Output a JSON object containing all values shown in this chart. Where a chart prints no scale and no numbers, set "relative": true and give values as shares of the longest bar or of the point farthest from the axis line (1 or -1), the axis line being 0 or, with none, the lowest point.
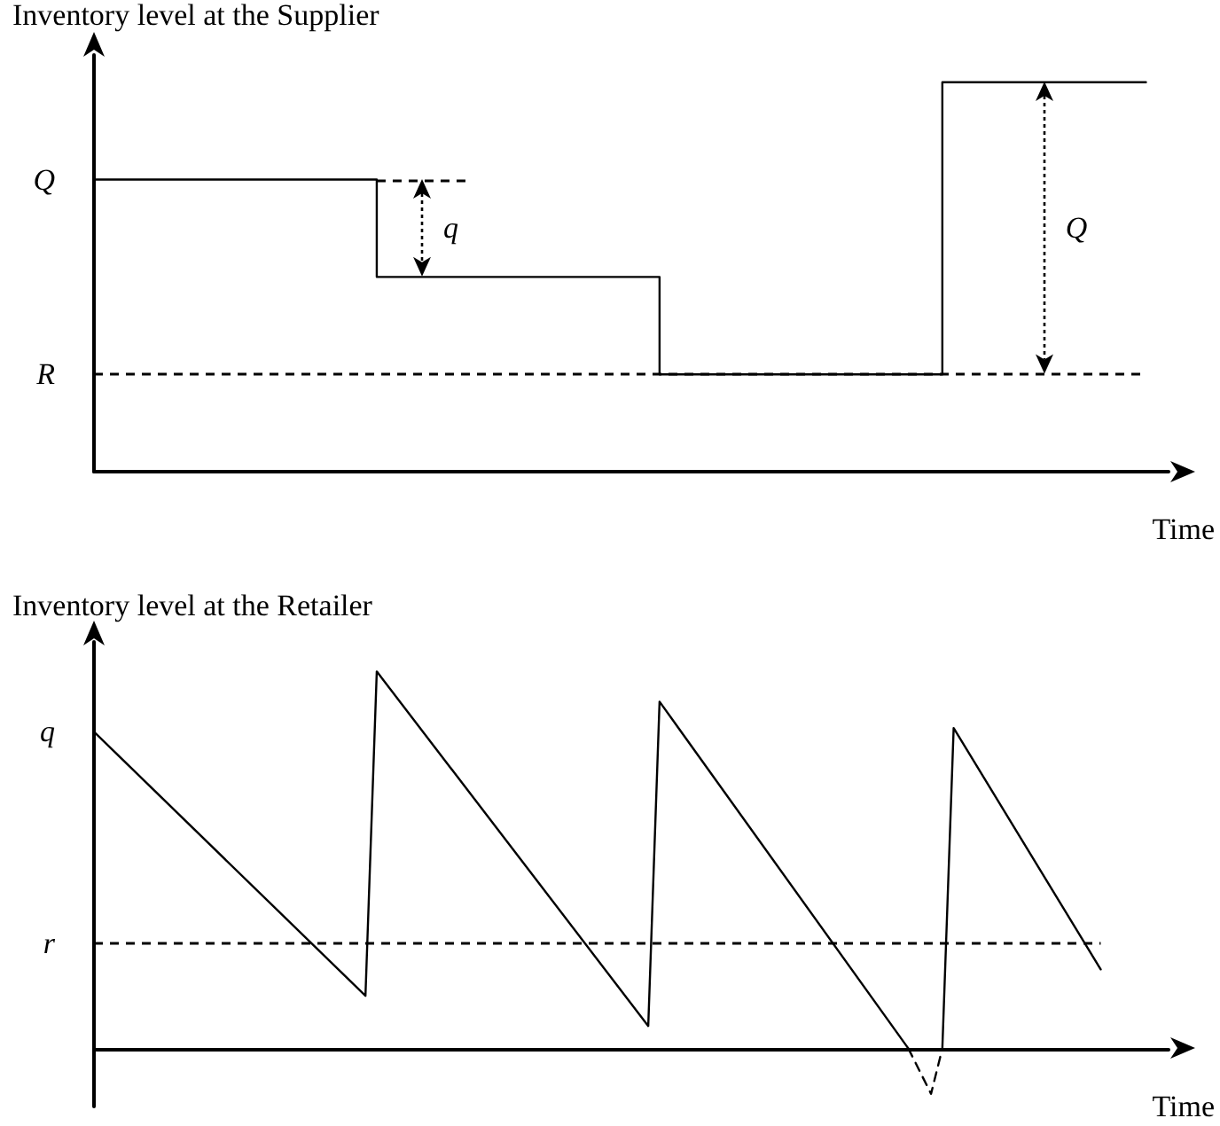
{
  "chart_data": [
    {
      "type": "step",
      "ylabel": "Inventory level at the Supplier",
      "xlabel": "Time",
      "relative": true,
      "line_style": "solid",
      "categories": [
        null,
        null,
        null,
        null,
        null,
        null,
        null,
        null,
        null,
        null,
        null,
        null,
        null,
        null,
        null,
        null,
        null,
        null,
        null,
        null,
        null,
        null,
        null,
        null,
        null,
        null,
        null,
        null,
        null,
        null,
        null,
        null,
        null,
        null,
        null,
        null,
        null,
        null,
        null,
        null,
        null,
        null,
        null,
        null,
        null,
        null,
        null,
        null,
        null,
        null,
        null,
        null,
        null,
        null,
        null,
        null,
        null,
        null,
        null,
        null,
        null,
        null,
        null,
        null,
        null,
        null,
        null,
        null,
        null,
        null,
        null,
        null,
        null,
        null,
        null,
        null,
        null,
        null,
        null,
        null,
        null,
        null,
        null,
        null,
        null,
        null,
        null,
        null,
        null,
        null,
        null,
        null,
        null,
        null,
        null,
        null
      ],
      "series": [
        {
          "color": "#000000",
          "values": [
            0.75,
            null,
            null,
            null,
            null,
            null,
            null,
            null,
            null,
            null,
            null,
            null,
            null,
            null,
            null,
            null,
            null,
            null,
            null,
            null,
            null,
            null,
            null,
            null,
            null,
            0.5,
            null,
            null,
            null,
            null,
            null,
            null,
            null,
            null,
            null,
            null,
            null,
            null,
            null,
            null,
            null,
            null,
            null,
            null,
            null,
            null,
            null,
            null,
            null,
            null,
            0.25,
            null,
            null,
            null,
            null,
            null,
            null,
            null,
            null,
            null,
            null,
            null,
            null,
            null,
            null,
            null,
            null,
            null,
            null,
            null,
            null,
            null,
            null,
            null,
            null,
            1,
            null,
            null,
            null,
            null,
            null,
            null,
            null,
            null,
            null,
            null,
            null,
            null,
            null,
            null,
            null,
            null,
            null,
            1,
            null,
            null
          ]
        }
      ],
      "ref_lines": [
        {
          "axis": "y",
          "value": 0.25,
          "label": "R",
          "line_style": "dashed",
          "color": "#000000"
        }
      ],
      "annotations": [
        "Q",
        "q",
        "Q"
      ]
    },
    {
      "type": "line",
      "ylabel": "Inventory level at the Retailer",
      "xlabel": "Time",
      "relative": true,
      "line_style": "solid",
      "categories": [
        null,
        null,
        null,
        null,
        null,
        null,
        null,
        null,
        null,
        null,
        null,
        null,
        null,
        null,
        null,
        null,
        null,
        null,
        null,
        null,
        null,
        null,
        null,
        null,
        null,
        null,
        null,
        null,
        null,
        null,
        null,
        null,
        null,
        null,
        null,
        null,
        null,
        null,
        null,
        null,
        null,
        null,
        null,
        null,
        null,
        null,
        null,
        null,
        null,
        null,
        null,
        null,
        null,
        null,
        null,
        null,
        null,
        null,
        null,
        null,
        null,
        null,
        null,
        null,
        null,
        null,
        null,
        null,
        null,
        null,
        null,
        null,
        null,
        null,
        null,
        null,
        null,
        null,
        null,
        null,
        null,
        null,
        null,
        null,
        null,
        null,
        null,
        null,
        null,
        null,
        null,
        null,
        null,
        null,
        null,
        null
      ],
      "series": [
        {
          "color": "#000000",
          "values": [
            0.84,
            null,
            null,
            null,
            null,
            null,
            null,
            null,
            null,
            null,
            null,
            null,
            null,
            null,
            null,
            null,
            null,
            null,
            null,
            null,
            null,
            null,
            null,
            null,
            0.14,
            1,
            null,
            null,
            null,
            null,
            null,
            null,
            null,
            null,
            null,
            null,
            null,
            null,
            null,
            null,
            null,
            null,
            null,
            null,
            null,
            null,
            null,
            null,
            null,
            0.06,
            0.92,
            null,
            null,
            null,
            null,
            null,
            null,
            null,
            null,
            null,
            null,
            null,
            null,
            null,
            null,
            null,
            null,
            null,
            null,
            null,
            null,
            null,
            0,
            null,
            null,
            null,
            null,
            null,
            null,
            null,
            null,
            null,
            null,
            null,
            null,
            null,
            null,
            null,
            null,
            null,
            null,
            null,
            null,
            null,
            null,
            null
          ]
        },
        {
          "color": "#000000",
          "line_style": "dashed",
          "values": [
            null,
            null,
            null,
            null,
            null,
            null,
            null,
            null,
            null,
            null,
            null,
            null,
            null,
            null,
            null,
            null,
            null,
            null,
            null,
            null,
            null,
            null,
            null,
            null,
            null,
            null,
            null,
            null,
            null,
            null,
            null,
            null,
            null,
            null,
            null,
            null,
            null,
            null,
            null,
            null,
            null,
            null,
            null,
            null,
            null,
            null,
            null,
            null,
            null,
            null,
            null,
            null,
            null,
            null,
            null,
            null,
            null,
            null,
            null,
            null,
            null,
            null,
            null,
            null,
            null,
            null,
            null,
            null,
            null,
            null,
            null,
            null,
            0,
            null,
            -0.12,
            0,
            null,
            null,
            null,
            null,
            null,
            null,
            null,
            null,
            null,
            null,
            null,
            null,
            null,
            null,
            null,
            null,
            null,
            null,
            null,
            null
          ]
        },
        {
          "color": "#000000",
          "values": [
            null,
            null,
            null,
            null,
            null,
            null,
            null,
            null,
            null,
            null,
            null,
            null,
            null,
            null,
            null,
            null,
            null,
            null,
            null,
            null,
            null,
            null,
            null,
            null,
            null,
            null,
            null,
            null,
            null,
            null,
            null,
            null,
            null,
            null,
            null,
            null,
            null,
            null,
            null,
            null,
            null,
            null,
            null,
            null,
            null,
            null,
            null,
            null,
            null,
            null,
            null,
            null,
            null,
            null,
            null,
            null,
            null,
            null,
            null,
            null,
            null,
            null,
            null,
            null,
            null,
            null,
            null,
            null,
            null,
            null,
            null,
            null,
            null,
            null,
            null,
            0,
            0.85,
            null,
            null,
            null,
            null,
            null,
            null,
            null,
            null,
            null,
            null,
            null,
            null,
            0.21,
            null,
            null,
            null,
            null,
            null,
            null
          ]
        }
      ],
      "ref_lines": [
        {
          "axis": "y",
          "value": 0.28,
          "label": "r",
          "line_style": "dashed",
          "color": "#000000"
        }
      ],
      "annotations": [
        "q"
      ]
    }
  ]
}
